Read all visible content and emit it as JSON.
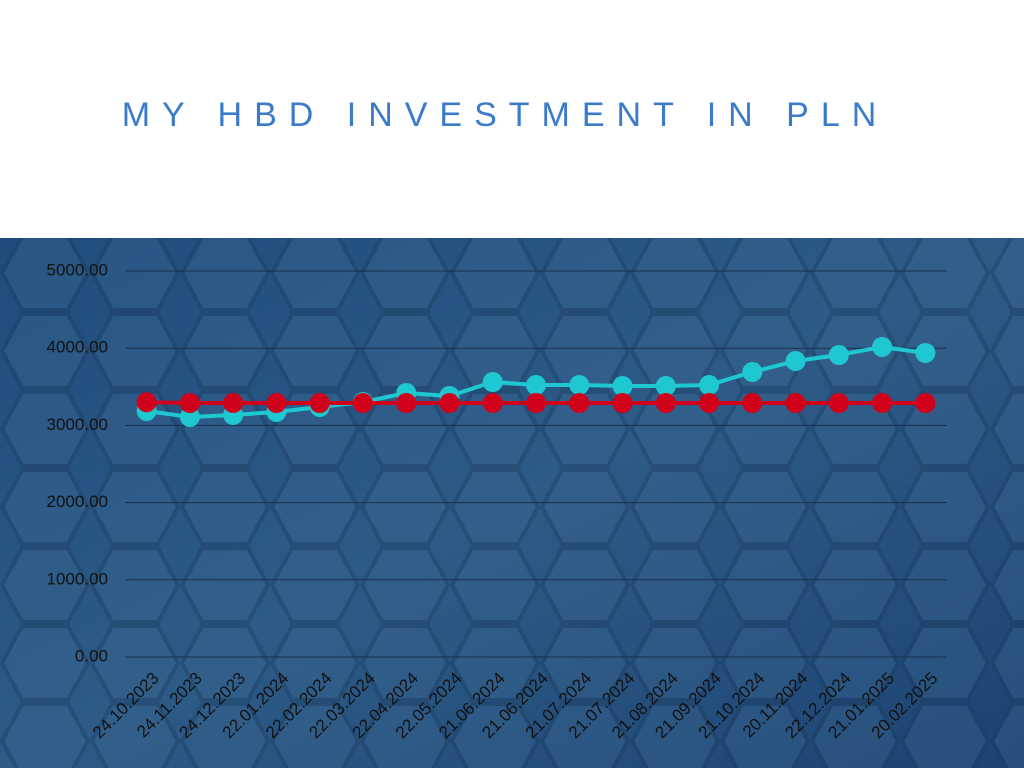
{
  "chart_data": {
    "type": "line",
    "title": "MY HBD INVESTMENT IN PLN",
    "categories": [
      "24.10.2023",
      "24.11.2023",
      "24.12.2023",
      "22.01.2024",
      "22.02.2024",
      "22.03.2024",
      "22.04.2024",
      "22.05.2024",
      "21.06.2024",
      "21.06.2024",
      "21.07.2024",
      "21.07.2024",
      "21.08.2024",
      "21.09.2024",
      "21.10.2024",
      "20.11.2024",
      "22.12.2024",
      "21.01.2025",
      "20.02.2025"
    ],
    "series": [
      {
        "color": "#1fc8d0",
        "values": [
          3187,
          3109,
          3135,
          3174,
          3238,
          3303,
          3420,
          3381,
          3562,
          3523,
          3523,
          3510,
          3510,
          3523,
          3692,
          3834,
          3912,
          4016,
          3938
        ]
      },
      {
        "color": "#d0021b",
        "values": [
          3300,
          3290,
          3290,
          3290,
          3290,
          3290,
          3290,
          3290,
          3290,
          3290,
          3290,
          3290,
          3290,
          3290,
          3290,
          3290,
          3290,
          3290,
          3290
        ]
      }
    ],
    "ylim": [
      0,
      5000
    ],
    "yticks": [
      {
        "value": 0,
        "label": "0.00"
      },
      {
        "value": 1000,
        "label": "1000.00"
      },
      {
        "value": 2000,
        "label": "2000.00"
      },
      {
        "value": 3000,
        "label": "3000.00"
      },
      {
        "value": 4000,
        "label": "4000.00"
      },
      {
        "value": 5000,
        "label": "5000.00"
      }
    ],
    "grid": true
  }
}
